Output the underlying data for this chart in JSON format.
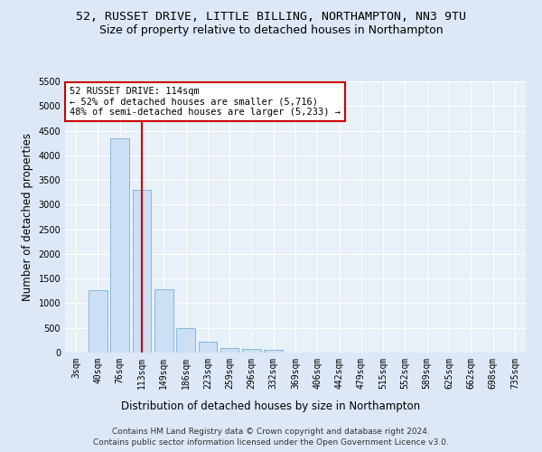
{
  "title_line1": "52, RUSSET DRIVE, LITTLE BILLING, NORTHAMPTON, NN3 9TU",
  "title_line2": "Size of property relative to detached houses in Northampton",
  "xlabel": "Distribution of detached houses by size in Northampton",
  "ylabel": "Number of detached properties",
  "bar_color": "#cce0f5",
  "bar_edge_color": "#7ab0d8",
  "bg_color": "#e8f0f8",
  "grid_color": "#ffffff",
  "categories": [
    "3sqm",
    "40sqm",
    "76sqm",
    "113sqm",
    "149sqm",
    "186sqm",
    "223sqm",
    "259sqm",
    "296sqm",
    "332sqm",
    "369sqm",
    "406sqm",
    "442sqm",
    "479sqm",
    "515sqm",
    "552sqm",
    "589sqm",
    "625sqm",
    "662sqm",
    "698sqm",
    "735sqm"
  ],
  "values": [
    0,
    1260,
    4340,
    3300,
    1290,
    490,
    220,
    90,
    70,
    55,
    0,
    0,
    0,
    0,
    0,
    0,
    0,
    0,
    0,
    0,
    0
  ],
  "vline_x": 3,
  "vline_color": "#cc0000",
  "annotation_line1": "52 RUSSET DRIVE: 114sqm",
  "annotation_line2": "← 52% of detached houses are smaller (5,716)",
  "annotation_line3": "48% of semi-detached houses are larger (5,233) →",
  "annotation_box_color": "#ffffff",
  "annotation_box_edge": "#cc0000",
  "ylim": [
    0,
    5500
  ],
  "yticks": [
    0,
    500,
    1000,
    1500,
    2000,
    2500,
    3000,
    3500,
    4000,
    4500,
    5000,
    5500
  ],
  "footer_line1": "Contains HM Land Registry data © Crown copyright and database right 2024.",
  "footer_line2": "Contains public sector information licensed under the Open Government Licence v3.0.",
  "title_fontsize": 9.5,
  "subtitle_fontsize": 9,
  "axis_label_fontsize": 8.5,
  "tick_fontsize": 7,
  "annotation_fontsize": 7.5,
  "footer_fontsize": 6.5
}
